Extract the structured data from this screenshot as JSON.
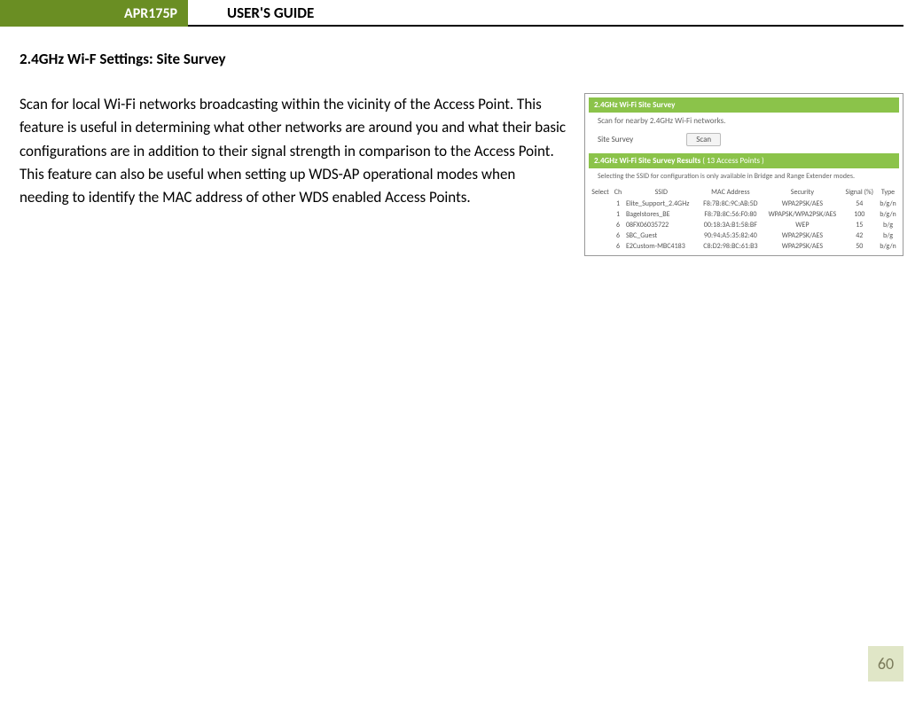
{
  "header": {
    "badge": "APR175P",
    "title": "USER'S GUIDE"
  },
  "section_heading": "2.4GHz Wi-F Settings: Site Survey",
  "body_text": "Scan for local Wi-Fi networks broadcasting within the vicinity of the Access Point.  This feature is useful in determining what other networks are around you and what their basic configurations are in addition to their signal strength in comparison to the Access Point.  This feature can also be useful when setting up WDS-AP operational modes when needing to identify the MAC address of other WDS enabled Access Points.",
  "screenshot": {
    "panel1_title": "2.4GHz Wi-Fi Site Survey",
    "panel1_sub": "Scan for nearby 2.4GHz Wi-Fi networks.",
    "site_survey_label": "Site Survey",
    "scan_btn": "Scan",
    "results_title": "2.4GHz Wi-Fi Site Survey Results",
    "results_count": "( 13 Access Points )",
    "results_note": "Selecting the SSID for configuration is only available in Bridge and Range Extender modes.",
    "columns": [
      "Select",
      "Ch",
      "SSID",
      "MAC Address",
      "Security",
      "Signal (%)",
      "Type"
    ],
    "rows": [
      [
        "",
        "1",
        "Elite_Support_2.4GHz",
        "F8:7B:8C:9C:AB:5D",
        "WPA2PSK/AES",
        "54",
        "b/g/n"
      ],
      [
        "",
        "1",
        "Bagelstores_BE",
        "F8:7B:8C:56:F0:80",
        "WPAPSK/WPA2PSK/AES",
        "100",
        "b/g/n"
      ],
      [
        "",
        "6",
        "08FX06035722",
        "00:18:3A:B1:58:BF",
        "WEP",
        "15",
        "b/g"
      ],
      [
        "",
        "6",
        "SBC_Guest",
        "90:94:A5:35:82:40",
        "WPA2PSK/AES",
        "42",
        "b/g"
      ],
      [
        "",
        "6",
        "E2Custom-MBC4183",
        "C8:D2:98:BC:61:B3",
        "WPA2PSK/AES",
        "50",
        "b/g/n"
      ]
    ]
  },
  "colors": {
    "brand_green": "#6a8e23",
    "light_green": "#8bc34a",
    "page_badge_bg": "#e0e6c7",
    "page_badge_text": "#7a7a5a"
  },
  "page_number": "60"
}
